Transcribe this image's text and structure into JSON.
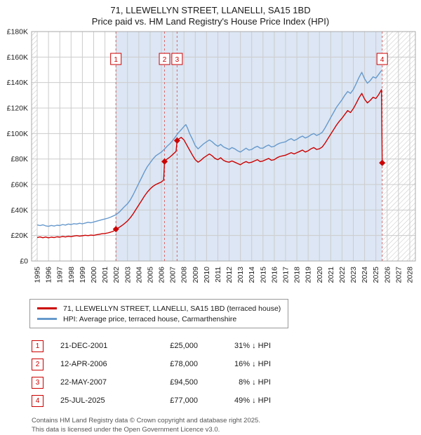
{
  "header": {
    "title": "71, LLEWELLYN STREET, LLANELLI, SA15 1BD",
    "subtitle": "Price paid vs. HM Land Registry's House Price Index (HPI)"
  },
  "chart_data": {
    "type": "line",
    "title": "Price paid vs. HM Land Registry's House Price Index (HPI)",
    "y_unit": "GBP thousands",
    "xlim": [
      1994.5,
      2028.5
    ],
    "ylim_k": [
      0,
      180
    ],
    "grid": true,
    "x_ticks": [
      1995,
      1996,
      1997,
      1998,
      1999,
      2000,
      2001,
      2002,
      2003,
      2004,
      2005,
      2006,
      2007,
      2008,
      2009,
      2010,
      2011,
      2012,
      2013,
      2014,
      2015,
      2016,
      2017,
      2018,
      2019,
      2020,
      2021,
      2022,
      2023,
      2024,
      2025,
      2026,
      2027,
      2028
    ],
    "y_ticks": [
      {
        "v": 0,
        "label": "£0"
      },
      {
        "v": 20,
        "label": "£20K"
      },
      {
        "v": 40,
        "label": "£40K"
      },
      {
        "v": 60,
        "label": "£60K"
      },
      {
        "v": 80,
        "label": "£80K"
      },
      {
        "v": 100,
        "label": "£100K"
      },
      {
        "v": 120,
        "label": "£120K"
      },
      {
        "v": 140,
        "label": "£140K"
      },
      {
        "v": 160,
        "label": "£160K"
      },
      {
        "v": 180,
        "label": "£180K"
      }
    ],
    "shaded_region": [
      2001.97,
      2025.56
    ],
    "hatch_regions": [
      [
        1994.5,
        1995.0
      ],
      [
        2025.56,
        2028.5
      ]
    ],
    "colors": {
      "red": "#cc0000",
      "blue": "#6699cc",
      "shade": "#dce6f4",
      "grid": "#cccccc",
      "dashed": "#d46a6a",
      "hatch": "#c4c4c4",
      "border": "#aaaaaa"
    },
    "series": [
      {
        "name": "71, LLEWELLYN STREET, LLANELLI, SA15 1BD (terraced house)",
        "color": "#cc0000",
        "points": [
          [
            1995,
            18.4
          ],
          [
            1995.25,
            18.9
          ],
          [
            1995.5,
            18.3
          ],
          [
            1995.75,
            18.8
          ],
          [
            1996,
            18.2
          ],
          [
            1996.25,
            18.7
          ],
          [
            1996.5,
            18.4
          ],
          [
            1996.75,
            19
          ],
          [
            1997,
            18.7
          ],
          [
            1997.25,
            19.2
          ],
          [
            1997.5,
            18.9
          ],
          [
            1997.75,
            19.4
          ],
          [
            1998,
            19.1
          ],
          [
            1998.25,
            19.6
          ],
          [
            1998.5,
            19.9
          ],
          [
            1998.75,
            19.5
          ],
          [
            1999,
            19.8
          ],
          [
            1999.25,
            20.2
          ],
          [
            1999.5,
            19.9
          ],
          [
            1999.75,
            20.3
          ],
          [
            2000,
            20.1
          ],
          [
            2000.25,
            20.6
          ],
          [
            2000.5,
            21
          ],
          [
            2000.75,
            21.4
          ],
          [
            2001,
            21.6
          ],
          [
            2001.25,
            22
          ],
          [
            2001.5,
            22.6
          ],
          [
            2001.75,
            23.4
          ],
          [
            2001.97,
            25
          ],
          [
            2002.25,
            26.3
          ],
          [
            2002.5,
            27.8
          ],
          [
            2002.75,
            29.5
          ],
          [
            2003,
            31.5
          ],
          [
            2003.25,
            34
          ],
          [
            2003.5,
            37
          ],
          [
            2003.75,
            40.5
          ],
          [
            2004,
            44
          ],
          [
            2004.25,
            47.5
          ],
          [
            2004.5,
            51
          ],
          [
            2004.75,
            54
          ],
          [
            2005,
            56.5
          ],
          [
            2005.25,
            58.5
          ],
          [
            2005.5,
            60
          ],
          [
            2005.75,
            61
          ],
          [
            2006,
            62
          ],
          [
            2006.2,
            63.5
          ],
          [
            2006.28,
            78
          ],
          [
            2006.5,
            80
          ],
          [
            2006.75,
            81.5
          ],
          [
            2007,
            83.5
          ],
          [
            2007.3,
            86
          ],
          [
            2007.39,
            94.5
          ],
          [
            2007.5,
            95.5
          ],
          [
            2007.75,
            97
          ],
          [
            2008,
            95
          ],
          [
            2008.25,
            91
          ],
          [
            2008.5,
            87
          ],
          [
            2008.75,
            83
          ],
          [
            2009,
            79.5
          ],
          [
            2009.25,
            77.5
          ],
          [
            2009.5,
            79
          ],
          [
            2009.75,
            81
          ],
          [
            2010,
            82.5
          ],
          [
            2010.25,
            84
          ],
          [
            2010.5,
            82.5
          ],
          [
            2010.75,
            80.5
          ],
          [
            2011,
            79.5
          ],
          [
            2011.25,
            81
          ],
          [
            2011.5,
            79
          ],
          [
            2011.75,
            78
          ],
          [
            2012,
            77.5
          ],
          [
            2012.25,
            78.5
          ],
          [
            2012.5,
            77.5
          ],
          [
            2012.75,
            76.5
          ],
          [
            2013,
            75.5
          ],
          [
            2013.25,
            77
          ],
          [
            2013.5,
            78
          ],
          [
            2013.75,
            77
          ],
          [
            2014,
            77.5
          ],
          [
            2014.25,
            78.5
          ],
          [
            2014.5,
            79.5
          ],
          [
            2014.75,
            78
          ],
          [
            2015,
            78.5
          ],
          [
            2015.25,
            79.5
          ],
          [
            2015.5,
            80.5
          ],
          [
            2015.75,
            79
          ],
          [
            2016,
            79.5
          ],
          [
            2016.25,
            81
          ],
          [
            2016.5,
            82
          ],
          [
            2016.75,
            82.5
          ],
          [
            2017,
            83
          ],
          [
            2017.25,
            84
          ],
          [
            2017.5,
            85
          ],
          [
            2017.75,
            84
          ],
          [
            2018,
            85
          ],
          [
            2018.25,
            86
          ],
          [
            2018.5,
            87
          ],
          [
            2018.75,
            85.5
          ],
          [
            2019,
            86.5
          ],
          [
            2019.25,
            88
          ],
          [
            2019.5,
            89
          ],
          [
            2019.75,
            87.5
          ],
          [
            2020,
            88
          ],
          [
            2020.25,
            89.5
          ],
          [
            2020.5,
            92.5
          ],
          [
            2020.75,
            96
          ],
          [
            2021,
            99.5
          ],
          [
            2021.25,
            103
          ],
          [
            2021.5,
            106.5
          ],
          [
            2021.75,
            109.5
          ],
          [
            2022,
            112
          ],
          [
            2022.25,
            115
          ],
          [
            2022.5,
            118
          ],
          [
            2022.75,
            116.5
          ],
          [
            2023,
            119.5
          ],
          [
            2023.25,
            123.5
          ],
          [
            2023.5,
            128
          ],
          [
            2023.75,
            131.5
          ],
          [
            2024,
            127
          ],
          [
            2024.25,
            124
          ],
          [
            2024.5,
            126
          ],
          [
            2024.75,
            128.5
          ],
          [
            2025,
            127.5
          ],
          [
            2025.25,
            130.5
          ],
          [
            2025.5,
            134.5
          ],
          [
            2025.56,
            77
          ]
        ]
      },
      {
        "name": "HPI: Average price, terraced house, Carmarthenshire",
        "color": "#6699cc",
        "points": [
          [
            1995,
            28.3
          ],
          [
            1995.25,
            27.8
          ],
          [
            1995.5,
            28.4
          ],
          [
            1995.75,
            27.6
          ],
          [
            1996,
            27.2
          ],
          [
            1996.25,
            27.9
          ],
          [
            1996.5,
            27.4
          ],
          [
            1996.75,
            28.1
          ],
          [
            1997,
            27.8
          ],
          [
            1997.25,
            28.6
          ],
          [
            1997.5,
            28.2
          ],
          [
            1997.75,
            29
          ],
          [
            1998,
            28.6
          ],
          [
            1998.25,
            29.3
          ],
          [
            1998.5,
            29
          ],
          [
            1998.75,
            29.6
          ],
          [
            1999,
            29.2
          ],
          [
            1999.25,
            29.8
          ],
          [
            1999.5,
            30.4
          ],
          [
            1999.75,
            30
          ],
          [
            2000,
            30.6
          ],
          [
            2000.25,
            31.2
          ],
          [
            2000.5,
            31.8
          ],
          [
            2000.75,
            32.4
          ],
          [
            2001,
            33
          ],
          [
            2001.25,
            33.6
          ],
          [
            2001.5,
            34.4
          ],
          [
            2001.75,
            35.4
          ],
          [
            2002,
            36.5
          ],
          [
            2002.25,
            38.2
          ],
          [
            2002.5,
            40.5
          ],
          [
            2002.75,
            42.8
          ],
          [
            2003,
            45
          ],
          [
            2003.25,
            48
          ],
          [
            2003.5,
            52
          ],
          [
            2003.75,
            56.5
          ],
          [
            2004,
            61
          ],
          [
            2004.25,
            65.5
          ],
          [
            2004.5,
            70
          ],
          [
            2004.75,
            74
          ],
          [
            2005,
            77
          ],
          [
            2005.25,
            80
          ],
          [
            2005.5,
            82.5
          ],
          [
            2005.75,
            84
          ],
          [
            2006,
            85.5
          ],
          [
            2006.25,
            87.5
          ],
          [
            2006.5,
            90
          ],
          [
            2006.75,
            92
          ],
          [
            2007,
            94.5
          ],
          [
            2007.25,
            97.5
          ],
          [
            2007.5,
            100.5
          ],
          [
            2007.75,
            103
          ],
          [
            2008,
            105.5
          ],
          [
            2008.17,
            107
          ],
          [
            2008.33,
            104
          ],
          [
            2008.5,
            100
          ],
          [
            2008.75,
            95.5
          ],
          [
            2009,
            90.5
          ],
          [
            2009.25,
            88
          ],
          [
            2009.5,
            90
          ],
          [
            2009.75,
            92
          ],
          [
            2010,
            93.5
          ],
          [
            2010.25,
            95
          ],
          [
            2010.5,
            93.5
          ],
          [
            2010.75,
            91.5
          ],
          [
            2011,
            90
          ],
          [
            2011.25,
            91.5
          ],
          [
            2011.5,
            89.5
          ],
          [
            2011.75,
            88.5
          ],
          [
            2012,
            87.5
          ],
          [
            2012.25,
            89
          ],
          [
            2012.5,
            88
          ],
          [
            2012.75,
            86.5
          ],
          [
            2013,
            85.5
          ],
          [
            2013.25,
            87
          ],
          [
            2013.5,
            88.5
          ],
          [
            2013.75,
            87
          ],
          [
            2014,
            87.5
          ],
          [
            2014.25,
            89
          ],
          [
            2014.5,
            90
          ],
          [
            2014.75,
            88.5
          ],
          [
            2015,
            88.5
          ],
          [
            2015.25,
            90
          ],
          [
            2015.5,
            91
          ],
          [
            2015.75,
            89.5
          ],
          [
            2016,
            90
          ],
          [
            2016.25,
            91.5
          ],
          [
            2016.5,
            92.5
          ],
          [
            2016.75,
            93
          ],
          [
            2017,
            93.5
          ],
          [
            2017.25,
            95
          ],
          [
            2017.5,
            96
          ],
          [
            2017.75,
            94.5
          ],
          [
            2018,
            95.5
          ],
          [
            2018.25,
            97
          ],
          [
            2018.5,
            98
          ],
          [
            2018.75,
            96.5
          ],
          [
            2019,
            97.5
          ],
          [
            2019.25,
            99
          ],
          [
            2019.5,
            100
          ],
          [
            2019.75,
            98.5
          ],
          [
            2020,
            99.5
          ],
          [
            2020.25,
            101
          ],
          [
            2020.5,
            104.5
          ],
          [
            2020.75,
            108.5
          ],
          [
            2021,
            112.5
          ],
          [
            2021.25,
            116.5
          ],
          [
            2021.5,
            120.5
          ],
          [
            2021.75,
            123.5
          ],
          [
            2022,
            126.5
          ],
          [
            2022.25,
            130
          ],
          [
            2022.5,
            133
          ],
          [
            2022.75,
            131.5
          ],
          [
            2023,
            134.5
          ],
          [
            2023.25,
            139
          ],
          [
            2023.5,
            144
          ],
          [
            2023.75,
            148
          ],
          [
            2024,
            143
          ],
          [
            2024.25,
            139.5
          ],
          [
            2024.5,
            141.5
          ],
          [
            2024.75,
            144.5
          ],
          [
            2025,
            143.5
          ],
          [
            2025.25,
            146.5
          ],
          [
            2025.5,
            149.5
          ]
        ]
      }
    ]
  },
  "transactions": [
    {
      "num": "1",
      "date": "21-DEC-2001",
      "price": "£25,000",
      "hpi": "31% ↓ HPI",
      "x": 2001.97,
      "value_k": 25
    },
    {
      "num": "2",
      "date": "12-APR-2006",
      "price": "£78,000",
      "hpi": "16% ↓ HPI",
      "x": 2006.28,
      "value_k": 78
    },
    {
      "num": "3",
      "date": "22-MAY-2007",
      "price": "£94,500",
      "hpi": "8% ↓ HPI",
      "x": 2007.39,
      "value_k": 94.5
    },
    {
      "num": "4",
      "date": "25-JUL-2025",
      "price": "£77,000",
      "hpi": "49% ↓ HPI",
      "x": 2025.56,
      "value_k": 77
    }
  ],
  "footer": {
    "line1": "Contains HM Land Registry data © Crown copyright and database right 2025.",
    "line2": "This data is licensed under the Open Government Licence v3.0."
  }
}
